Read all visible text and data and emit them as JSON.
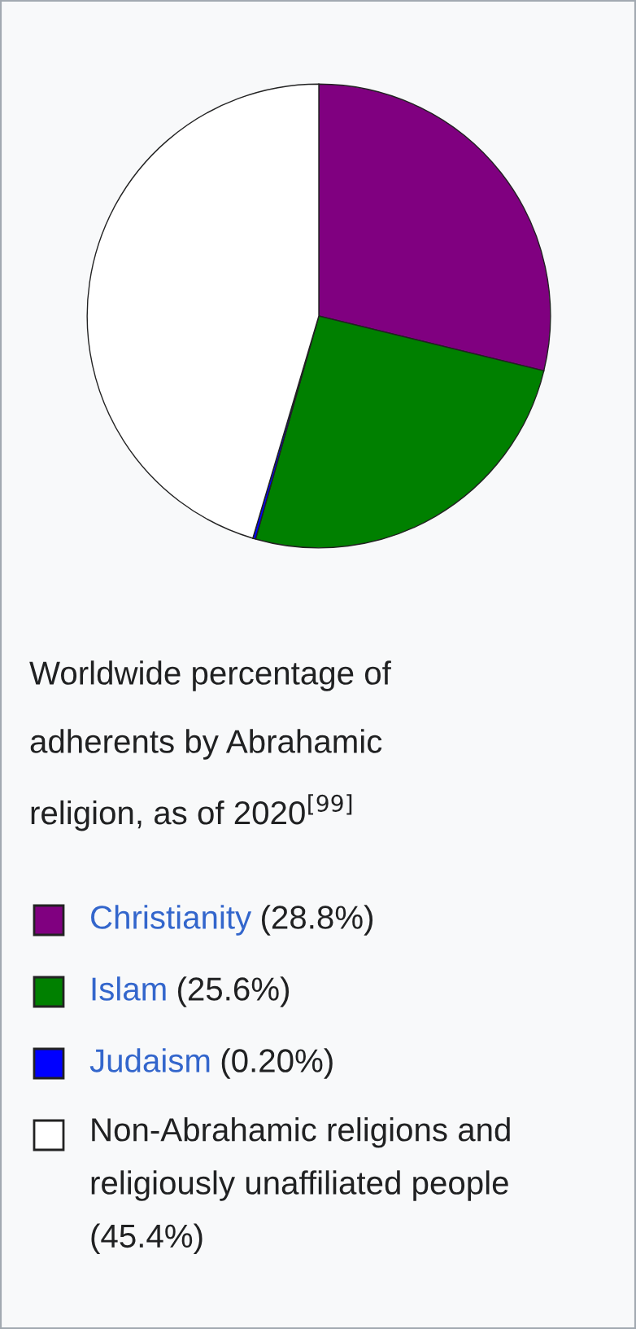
{
  "chart_data": {
    "type": "pie",
    "title": "Worldwide percentage of adherents by Abrahamic religion, as of 2020$^{[99]}$",
    "categories": [
      "Christianity",
      "Islam",
      "Judaism",
      "Non-Abrahamic religions and religiously unaffiliated people"
    ],
    "values": [
      28.8,
      25.6,
      0.2,
      45.4
    ],
    "value_labels": [
      "(28.8%)",
      "(25.6%)",
      "(0.20%)",
      "(45.4%)"
    ],
    "colors": [
      "#800080",
      "#008000",
      "#0000ff",
      "#ffffff"
    ],
    "legend": "bottom"
  }
}
